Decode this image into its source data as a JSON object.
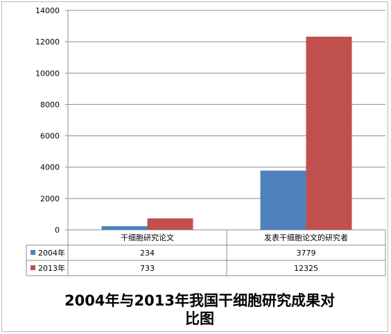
{
  "chart_data": {
    "type": "bar",
    "title_lines": [
      "2004年与2013年我国干细胞研究成果对",
      "比图"
    ],
    "categories": [
      "干细胞研究论文",
      "发表干细胞论文的研究者"
    ],
    "series": [
      {
        "name": "2004年",
        "values": [
          234,
          3779
        ],
        "color": "#4F81BD"
      },
      {
        "name": "2013年",
        "values": [
          733,
          12325
        ],
        "color": "#C0504D"
      }
    ],
    "ylim": [
      0,
      14000
    ],
    "yticks": [
      0,
      2000,
      4000,
      6000,
      8000,
      10000,
      12000,
      14000
    ],
    "grid": true,
    "legend": "data-table"
  }
}
